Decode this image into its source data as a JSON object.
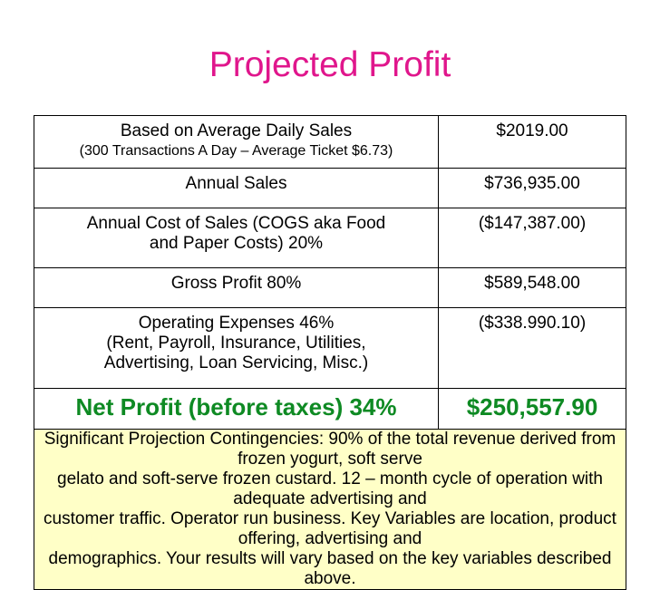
{
  "title": "Projected Profit",
  "rows": [
    {
      "label": "Based on Average Daily Sales",
      "sublabel": "(300 Transactions A Day – Average Ticket $6.73)",
      "value": "$2019.00"
    },
    {
      "label": "Annual Sales",
      "value": "$736,935.00"
    },
    {
      "label_lines": [
        "Annual Cost of Sales (COGS aka Food",
        "and Paper Costs) 20%"
      ],
      "value": "($147,387.00)"
    },
    {
      "label": "Gross Profit 80%",
      "value": "$589,548.00"
    },
    {
      "label_lines": [
        "Operating Expenses 46%",
        "(Rent, Payroll, Insurance, Utilities,",
        "Advertising, Loan Servicing, Misc.)"
      ],
      "value": "($338.990.10)"
    },
    {
      "label": "Net Profit (before taxes) 34%",
      "value": "$250,557.90"
    }
  ],
  "footnote_lines": [
    "Significant Projection Contingencies: 90% of the total revenue derived from frozen yogurt, soft serve",
    "gelato and soft-serve frozen custard. 12 – month cycle of operation with adequate advertising and",
    "customer traffic. Operator run business. Key Variables are location, product offering, advertising and",
    "demographics. Your results will vary based on the key variables described above."
  ],
  "colors": {
    "title": "#e0168c",
    "net_profit": "#0e8a23",
    "footnote_bg": "#ffffc7"
  }
}
